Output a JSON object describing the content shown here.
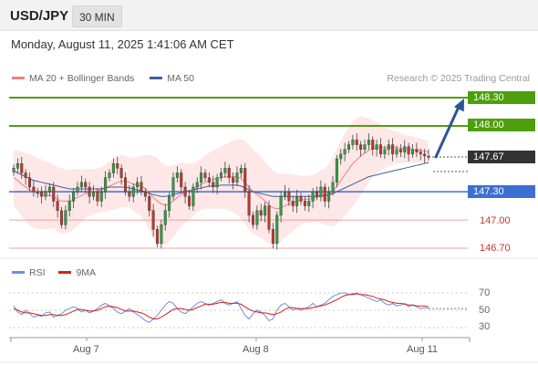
{
  "header": {
    "pair": "USD/JPY",
    "timeframe": "30 MIN"
  },
  "datetime": "Monday, August 11, 2025 1:41:06 AM CET",
  "legend": {
    "ma20": "MA 20 + Bollinger Bands",
    "ma50": "MA 50",
    "credit": "Research © 2025 Trading Central"
  },
  "colors": {
    "candle_up": "#2ea043",
    "candle_down": "#c0392b",
    "bollinger_fill": "#fde3e3",
    "ma20": "#f08080",
    "ma50": "#3d5f9e",
    "resistance": "#4e9f0e",
    "support": "#3d6fd1",
    "target": "#2a5599",
    "minor_level": "#f0a0a0",
    "rsi": "#6a8fd8",
    "rsi_ma": "#d42020"
  },
  "price_levels": {
    "r2": "148.30",
    "r1": "148.00",
    "last": "147.67",
    "s1": "147.30",
    "s2": "147.00",
    "s3": "146.70"
  },
  "rsi_panel": {
    "legend_rsi": "RSI",
    "legend_ma": "9MA",
    "ticks": [
      "70",
      "50",
      "30"
    ]
  },
  "x_ticks": [
    "Aug 7",
    "Aug 8",
    "Aug 11"
  ],
  "chart_data": {
    "type": "candlestick",
    "y_range": [
      146.6,
      148.4
    ],
    "levels": {
      "resistance": [
        148.3,
        148.0
      ],
      "last": 147.67,
      "support": [
        147.3,
        147.0,
        146.7
      ]
    },
    "path": [
      147.55,
      147.6,
      147.5,
      147.45,
      147.35,
      147.3,
      147.3,
      147.25,
      147.3,
      147.35,
      147.2,
      147.1,
      146.95,
      147.1,
      147.2,
      147.3,
      147.35,
      147.4,
      147.35,
      147.25,
      147.3,
      147.2,
      147.3,
      147.45,
      147.5,
      147.6,
      147.55,
      147.45,
      147.3,
      147.25,
      147.35,
      147.4,
      147.3,
      147.25,
      147.1,
      146.9,
      146.75,
      146.95,
      147.1,
      147.25,
      147.45,
      147.5,
      147.35,
      147.25,
      147.15,
      147.35,
      147.4,
      147.5,
      147.45,
      147.4,
      147.35,
      147.45,
      147.5,
      147.55,
      147.45,
      147.4,
      147.5,
      147.55,
      147.3,
      147.05,
      146.95,
      147.1,
      147.05,
      147.15,
      146.9,
      146.75,
      147.05,
      147.25,
      147.3,
      147.2,
      147.15,
      147.25,
      147.2,
      147.15,
      147.2,
      147.3,
      147.25,
      147.35,
      147.2,
      147.3,
      147.4,
      147.65,
      147.7,
      147.75,
      147.8,
      147.85,
      147.8,
      147.75,
      147.8,
      147.85,
      147.75,
      147.8,
      147.7,
      147.75,
      147.8,
      147.7,
      147.75,
      147.72,
      147.78,
      147.7,
      147.75,
      147.72,
      147.7,
      147.68,
      147.67
    ],
    "ma20": [
      147.45,
      147.42,
      147.38,
      147.35,
      147.32,
      147.3,
      147.28,
      147.27,
      147.26,
      147.26,
      147.25,
      147.22,
      147.2,
      147.2,
      147.2,
      147.22,
      147.24,
      147.26,
      147.28,
      147.29,
      147.3,
      147.31,
      147.32,
      147.34,
      147.36,
      147.38,
      147.4,
      147.41,
      147.41,
      147.4,
      147.38,
      147.37,
      147.36,
      147.33,
      147.29,
      147.24,
      147.2,
      147.17,
      147.16,
      147.17,
      147.2,
      147.24,
      147.27,
      147.29,
      147.3,
      147.32,
      147.35,
      147.38,
      147.4,
      147.42,
      147.43,
      147.44,
      147.45,
      147.46,
      147.46,
      147.46,
      147.46,
      147.44,
      147.4,
      147.35,
      147.3,
      147.27,
      147.24,
      147.2,
      147.16,
      147.13,
      147.12,
      147.13,
      147.15,
      147.17,
      147.18,
      147.2,
      147.21,
      147.22,
      147.22,
      147.23,
      147.24,
      147.25,
      147.25,
      147.27,
      147.3,
      147.36,
      147.42,
      147.48,
      147.54,
      147.6,
      147.64,
      147.68,
      147.71,
      147.74,
      147.76,
      147.77,
      147.77,
      147.77,
      147.77,
      147.77,
      147.77,
      147.76,
      147.76,
      147.75,
      147.75,
      147.74,
      147.74,
      147.73,
      147.72
    ],
    "ma50": [
      147.52,
      147.5,
      147.48,
      147.46,
      147.44,
      147.42,
      147.41,
      147.4,
      147.39,
      147.38,
      147.37,
      147.36,
      147.35,
      147.34,
      147.33,
      147.33,
      147.33,
      147.33,
      147.33,
      147.33,
      147.33,
      147.33,
      147.33,
      147.34,
      147.35,
      147.35,
      147.35,
      147.35,
      147.35,
      147.34,
      147.33,
      147.32,
      147.31,
      147.3,
      147.28,
      147.27,
      147.26,
      147.25,
      147.25,
      147.26,
      147.27,
      147.28,
      147.29,
      147.3,
      147.31,
      147.32,
      147.33,
      147.34,
      147.35,
      147.36,
      147.36,
      147.36,
      147.37,
      147.37,
      147.37,
      147.37,
      147.37,
      147.36,
      147.34,
      147.32,
      147.3,
      147.29,
      147.28,
      147.27,
      147.26,
      147.25,
      147.25,
      147.25,
      147.25,
      147.25,
      147.25,
      147.25,
      147.25,
      147.25,
      147.25,
      147.25,
      147.25,
      147.26,
      147.26,
      147.27,
      147.28,
      147.3,
      147.32,
      147.34,
      147.36,
      147.38,
      147.4,
      147.42,
      147.44,
      147.46,
      147.47,
      147.48,
      147.49,
      147.5,
      147.51,
      147.52,
      147.53,
      147.54,
      147.55,
      147.56,
      147.57,
      147.58,
      147.59,
      147.6,
      147.61
    ],
    "bollinger_width": [
      0.3,
      0.32,
      0.34,
      0.36,
      0.38,
      0.38,
      0.38,
      0.37,
      0.36,
      0.35,
      0.34,
      0.34,
      0.35,
      0.34,
      0.33,
      0.32,
      0.3,
      0.28,
      0.26,
      0.25,
      0.24,
      0.24,
      0.24,
      0.25,
      0.26,
      0.27,
      0.28,
      0.28,
      0.27,
      0.27,
      0.28,
      0.3,
      0.32,
      0.36,
      0.4,
      0.44,
      0.46,
      0.44,
      0.42,
      0.4,
      0.38,
      0.36,
      0.34,
      0.32,
      0.3,
      0.28,
      0.27,
      0.27,
      0.28,
      0.3,
      0.31,
      0.32,
      0.33,
      0.34,
      0.36,
      0.38,
      0.4,
      0.42,
      0.44,
      0.45,
      0.45,
      0.44,
      0.43,
      0.42,
      0.41,
      0.4,
      0.38,
      0.36,
      0.34,
      0.32,
      0.3,
      0.28,
      0.26,
      0.25,
      0.25,
      0.25,
      0.26,
      0.28,
      0.3,
      0.33,
      0.36,
      0.4,
      0.42,
      0.44,
      0.45,
      0.45,
      0.44,
      0.42,
      0.38,
      0.34,
      0.3,
      0.27,
      0.24,
      0.22,
      0.2,
      0.18,
      0.17,
      0.16,
      0.15,
      0.14,
      0.14,
      0.13,
      0.13,
      0.12,
      0.12
    ],
    "rsi": [
      55,
      48,
      45,
      50,
      46,
      42,
      44,
      43,
      47,
      48,
      42,
      44,
      46,
      50,
      52,
      54,
      52,
      48,
      50,
      47,
      49,
      52,
      56,
      58,
      55,
      52,
      48,
      46,
      49,
      52,
      48,
      45,
      42,
      38,
      36,
      40,
      44,
      50,
      56,
      60,
      58,
      52,
      48,
      46,
      50,
      54,
      58,
      60,
      58,
      56,
      58,
      60,
      62,
      58,
      56,
      58,
      60,
      52,
      44,
      40,
      46,
      50,
      48,
      44,
      38,
      40,
      50,
      56,
      58,
      54,
      50,
      52,
      50,
      52,
      54,
      58,
      54,
      56,
      58,
      62,
      66,
      68,
      70,
      70,
      68,
      69,
      70,
      68,
      66,
      64,
      62,
      60,
      62,
      58,
      56,
      58,
      55,
      56,
      58,
      54,
      56,
      54,
      52,
      53,
      52
    ],
    "rsi_ma": [
      52,
      50,
      48,
      47,
      47,
      46,
      45,
      44,
      44,
      45,
      45,
      44,
      44,
      45,
      47,
      49,
      51,
      51,
      50,
      49,
      49,
      50,
      52,
      54,
      55,
      54,
      53,
      51,
      49,
      49,
      49,
      48,
      47,
      45,
      42,
      40,
      40,
      42,
      45,
      48,
      51,
      52,
      52,
      51,
      50,
      51,
      53,
      55,
      57,
      57,
      57,
      58,
      59,
      59,
      58,
      58,
      58,
      57,
      54,
      51,
      49,
      48,
      47,
      47,
      46,
      45,
      46,
      48,
      51,
      53,
      53,
      52,
      52,
      52,
      52,
      53,
      54,
      55,
      56,
      58,
      60,
      62,
      65,
      67,
      68,
      68,
      69,
      68,
      68,
      67,
      66,
      64,
      63,
      62,
      60,
      59,
      58,
      58,
      57,
      56,
      56,
      55,
      55,
      55,
      54
    ]
  }
}
